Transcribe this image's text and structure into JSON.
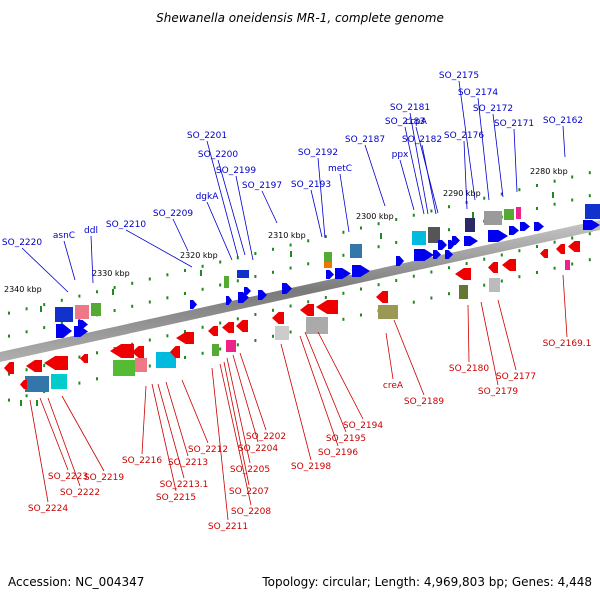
{
  "title": "Shewanella oneidensis MR-1, complete genome",
  "footer": {
    "accession": "Accession: NC_004347",
    "info": "Topology: circular; Length: 4,969,803 bp; Genes: 4,448"
  },
  "colors": {
    "forward_label": "#0000cc",
    "reverse_label": "#cc0000",
    "forward_arrow": "#0000ee",
    "reverse_arrow": "#ee0000",
    "tick": "#228822",
    "backbone": "#808080"
  },
  "kbp_labels": [
    "2280 kbp",
    "2290 kbp",
    "2300 kbp",
    "2310 kbp",
    "2320 kbp",
    "2330 kbp",
    "2340 kbp"
  ],
  "forward_genes": [
    "SO_2175",
    "SO_2174",
    "SO_2172",
    "SO_2171",
    "SO_2162",
    "SO_2181",
    "SO_2183",
    "ccpA",
    "SO_2187",
    "SO_2182",
    "SO_2176",
    "ppx",
    "SO_2201",
    "SO_2192",
    "SO_2200",
    "metC",
    "SO_2199",
    "SO_2193",
    "dgkA",
    "SO_2197",
    "SO_2209",
    "SO_2210",
    "asnC",
    "ddl",
    "SO_2220"
  ],
  "reverse_genes": [
    "SO_2169.1",
    "SO_2180",
    "SO_2177",
    "SO_2179",
    "creA",
    "SO_2189",
    "SO_2194",
    "SO_2195",
    "SO_2196",
    "SO_2198",
    "SO_2202",
    "SO_2204",
    "SO_2205",
    "SO_2207",
    "SO_2208",
    "SO_2211",
    "SO_2212",
    "SO_2213",
    "SO_2213.1",
    "SO_2215",
    "SO_2216",
    "SO_2219",
    "SO_2222",
    "SO_2223",
    "SO_2224"
  ]
}
